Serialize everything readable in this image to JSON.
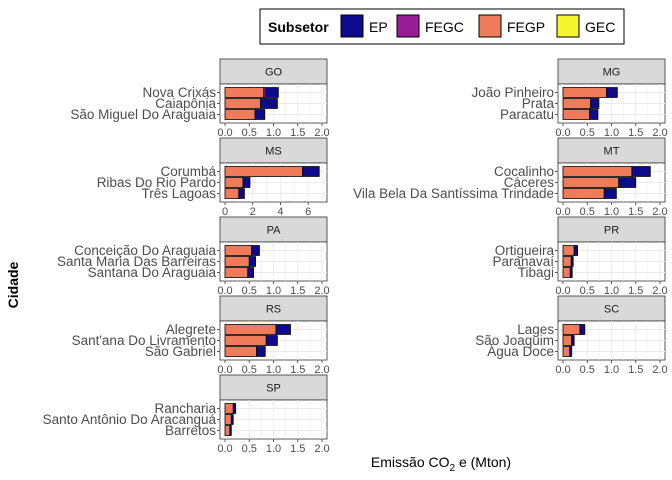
{
  "chart_data": {
    "type": "bar",
    "orientation": "horizontal",
    "stacked": true,
    "xlabel_main": "Emissão CO",
    "xlabel_sub": "2",
    "xlabel_rest": " e (Mton)",
    "ylabel": "Cidade",
    "grid": true,
    "legend": {
      "title": "Subsetor",
      "position": "top",
      "items": [
        {
          "name": "EP",
          "color": "#0d0a8b"
        },
        {
          "name": "FEGC",
          "color": "#9a1b96"
        },
        {
          "name": "FEGP",
          "color": "#ef7b5b"
        },
        {
          "name": "GEC",
          "color": "#f5f52b"
        }
      ]
    },
    "facets": [
      {
        "state": "GO",
        "col": 0,
        "row": 0,
        "xlim": [
          0,
          2.0
        ],
        "ticks": [
          "0.0",
          "0.5",
          "1.0",
          "1.5",
          "2.0"
        ],
        "cities": [
          {
            "name": "Nova Crixás",
            "FEGP": 0.8,
            "FEGC": 0.04,
            "EP": 0.26
          },
          {
            "name": "Caiapônia",
            "FEGP": 0.73,
            "FEGC": 0.0,
            "EP": 0.35
          },
          {
            "name": "São Miguel Do Araguaia",
            "FEGP": 0.62,
            "FEGC": 0.0,
            "EP": 0.2
          }
        ]
      },
      {
        "state": "MG",
        "col": 1,
        "row": 0,
        "xlim": [
          0,
          2.0
        ],
        "ticks": [
          "0.0",
          "0.5",
          "1.0",
          "1.5",
          "2.0"
        ],
        "cities": [
          {
            "name": "João Pinheiro",
            "FEGP": 0.9,
            "FEGC": 0.0,
            "EP": 0.22
          },
          {
            "name": "Prata",
            "FEGP": 0.57,
            "FEGC": 0.0,
            "EP": 0.17
          },
          {
            "name": "Paracatu",
            "FEGP": 0.55,
            "FEGC": 0.0,
            "EP": 0.17
          }
        ]
      },
      {
        "state": "MS",
        "col": 0,
        "row": 1,
        "xlim": [
          0,
          7.0
        ],
        "ticks": [
          "0",
          "2",
          "4",
          "6"
        ],
        "cities": [
          {
            "name": "Corumbá",
            "FEGP": 5.6,
            "FEGC": 0.0,
            "EP": 1.2
          },
          {
            "name": "Ribas Do Rio Pardo",
            "FEGP": 1.3,
            "FEGC": 0.0,
            "EP": 0.5
          },
          {
            "name": "Três Lagoas",
            "FEGP": 1.0,
            "FEGC": 0.0,
            "EP": 0.4
          }
        ]
      },
      {
        "state": "MT",
        "col": 1,
        "row": 1,
        "xlim": [
          0,
          2.0
        ],
        "ticks": [
          "0.0",
          "0.5",
          "1.0",
          "1.5",
          "2.0"
        ],
        "cities": [
          {
            "name": "Cocalinho",
            "FEGP": 1.42,
            "FEGC": 0.0,
            "EP": 0.38
          },
          {
            "name": "Cáceres",
            "FEGP": 1.15,
            "FEGC": 0.0,
            "EP": 0.35
          },
          {
            "name": "Vila Bela Da Santíssima Trindade",
            "FEGP": 0.85,
            "FEGC": 0.0,
            "EP": 0.25
          }
        ]
      },
      {
        "state": "PA",
        "col": 0,
        "row": 2,
        "xlim": [
          0,
          2.0
        ],
        "ticks": [
          "0.0",
          "0.5",
          "1.0",
          "1.5",
          "2.0"
        ],
        "cities": [
          {
            "name": "Conceição Do Araguaia",
            "FEGP": 0.55,
            "FEGC": 0.0,
            "EP": 0.16
          },
          {
            "name": "Santa Maria Das Barreiras",
            "FEGP": 0.5,
            "FEGC": 0.0,
            "EP": 0.13
          },
          {
            "name": "Santana Do Araguaia",
            "FEGP": 0.47,
            "FEGC": 0.0,
            "EP": 0.12
          }
        ]
      },
      {
        "state": "PR",
        "col": 1,
        "row": 2,
        "xlim": [
          0,
          2.0
        ],
        "ticks": [
          "0.0",
          "0.5",
          "1.0",
          "1.5",
          "2.0"
        ],
        "cities": [
          {
            "name": "Ortigueira",
            "FEGP": 0.23,
            "FEGC": 0.0,
            "EP": 0.07
          },
          {
            "name": "Paranavaí",
            "FEGP": 0.17,
            "FEGC": 0.0,
            "EP": 0.04
          },
          {
            "name": "Tibagi",
            "FEGP": 0.15,
            "FEGC": 0.0,
            "EP": 0.04
          }
        ]
      },
      {
        "state": "RS",
        "col": 0,
        "row": 3,
        "xlim": [
          0,
          2.0
        ],
        "ticks": [
          "0.0",
          "0.5",
          "1.0",
          "1.5",
          "2.0"
        ],
        "cities": [
          {
            "name": "Alegrete",
            "FEGP": 1.05,
            "FEGC": 0.0,
            "EP": 0.3
          },
          {
            "name": "Sant'ana Do Livramento",
            "FEGP": 0.85,
            "FEGC": 0.0,
            "EP": 0.23
          },
          {
            "name": "São Gabriel",
            "FEGP": 0.65,
            "FEGC": 0.0,
            "EP": 0.18
          }
        ]
      },
      {
        "state": "SC",
        "col": 1,
        "row": 3,
        "xlim": [
          0,
          2.0
        ],
        "ticks": [
          "0.0",
          "0.5",
          "1.0",
          "1.5",
          "2.0"
        ],
        "cities": [
          {
            "name": "Lages",
            "FEGP": 0.35,
            "FEGC": 0.0,
            "EP": 0.1
          },
          {
            "name": "São Joaquim",
            "FEGP": 0.18,
            "FEGC": 0.0,
            "EP": 0.05
          },
          {
            "name": "Água Doce",
            "FEGP": 0.14,
            "FEGC": 0.0,
            "EP": 0.04
          }
        ]
      },
      {
        "state": "SP",
        "col": 0,
        "row": 4,
        "xlim": [
          0,
          2.0
        ],
        "ticks": [
          "0.0",
          "0.5",
          "1.0",
          "1.5",
          "2.0"
        ],
        "cities": [
          {
            "name": "Rancharia",
            "FEGP": 0.17,
            "FEGC": 0.0,
            "EP": 0.05
          },
          {
            "name": "Santo Antônio Do Aracanguá",
            "FEGP": 0.13,
            "FEGC": 0.0,
            "EP": 0.04
          },
          {
            "name": "Barretos",
            "FEGP": 0.1,
            "FEGC": 0.0,
            "EP": 0.03
          }
        ]
      }
    ]
  }
}
